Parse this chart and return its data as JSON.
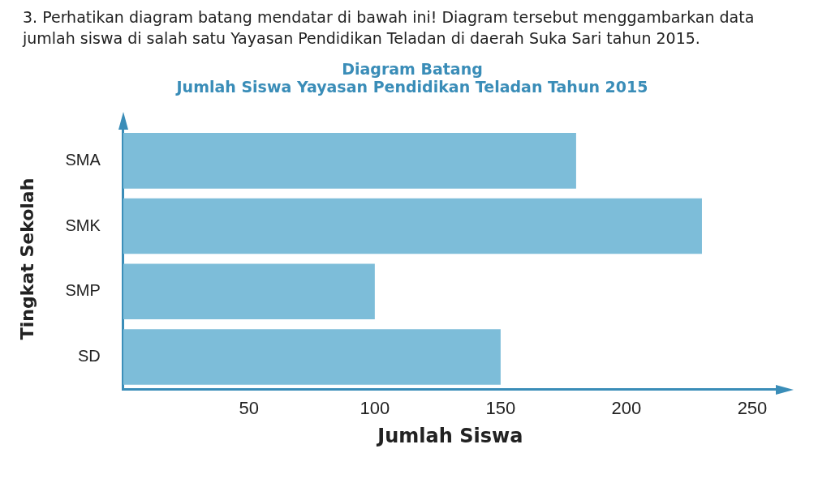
{
  "chart_data": {
    "type": "bar",
    "orientation": "horizontal",
    "title": "Diagram Batang",
    "subtitle": "Jumlah Siswa Yayasan Pendidikan Teladan Tahun 2015",
    "annotations": [
      "3. Perhatikan diagram batang mendatar di bawah ini! Diagram tersebut menggambarkan data jumlah siswa di salah satu Yayasan Pendidikan Teladan di daerah Suka Sari tahun 2015."
    ],
    "xlabel": "Jumlah Siswa",
    "ylabel": "Tingkat Sekolah",
    "categories": [
      "SMA",
      "SMK",
      "SMP",
      "SD"
    ],
    "values": [
      180,
      230,
      100,
      150
    ],
    "color": "#7dbdd9",
    "xlim": [
      0,
      260
    ],
    "xticks": [
      50,
      100,
      150,
      200,
      250
    ],
    "grid": false,
    "legend": false
  }
}
